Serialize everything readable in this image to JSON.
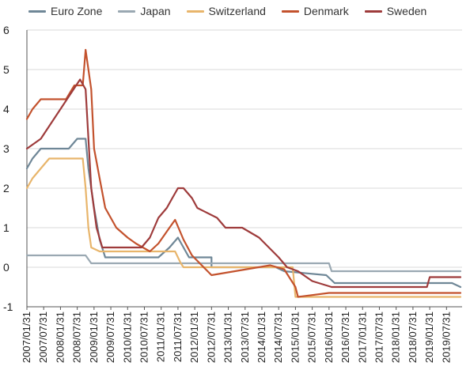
{
  "chart_data": {
    "type": "line",
    "title": "",
    "xlabel": "",
    "ylabel": "",
    "ylim": [
      -1,
      6
    ],
    "yticks": [
      "-1",
      "0",
      "1",
      "2",
      "3",
      "4",
      "5",
      "6"
    ],
    "grid": "horizontal",
    "legend_position": "top",
    "x_tick_labels": [
      "2007/01/31",
      "2007/07/31",
      "2008/01/31",
      "2008/07/31",
      "2009/01/31",
      "2009/07/31",
      "2010/01/31",
      "2010/07/31",
      "2011/01/31",
      "2011/07/31",
      "2012/01/31",
      "2012/07/31",
      "2013/01/31",
      "2013/07/31",
      "2014/01/31",
      "2014/07/31",
      "2015/01/31",
      "2015/07/31",
      "2016/01/31",
      "2016/07/31",
      "2017/01/31",
      "2017/07/31",
      "2018/01/31",
      "2018/07/31",
      "2019/01/31",
      "2019/07/31"
    ],
    "series": [
      {
        "name": "Euro Zone",
        "color": "#6f8797",
        "points": [
          [
            "2007/01/31",
            2.5
          ],
          [
            "2007/03/31",
            2.75
          ],
          [
            "2007/06/30",
            3.0
          ],
          [
            "2008/04/30",
            3.0
          ],
          [
            "2008/07/31",
            3.25
          ],
          [
            "2008/10/31",
            3.25
          ],
          [
            "2008/11/30",
            2.5
          ],
          [
            "2008/12/31",
            2.0
          ],
          [
            "2009/01/31",
            1.5
          ],
          [
            "2009/03/31",
            0.7
          ],
          [
            "2009/05/31",
            0.25
          ],
          [
            "2010/12/31",
            0.25
          ],
          [
            "2011/04/30",
            0.5
          ],
          [
            "2011/07/31",
            0.75
          ],
          [
            "2011/11/30",
            0.25
          ],
          [
            "2012/07/31",
            0.25
          ],
          [
            "2012/07/31",
            0.0
          ],
          [
            "2014/06/30",
            0.0
          ],
          [
            "2014/09/30",
            -0.1
          ],
          [
            "2015/12/31",
            -0.2
          ],
          [
            "2016/03/31",
            -0.4
          ],
          [
            "2019/09/30",
            -0.4
          ],
          [
            "2019/12/31",
            -0.5
          ]
        ]
      },
      {
        "name": "Japan",
        "color": "#9aa8b2",
        "points": [
          [
            "2007/01/31",
            0.3
          ],
          [
            "2008/10/31",
            0.3
          ],
          [
            "2008/12/31",
            0.1
          ],
          [
            "2016/01/31",
            0.1
          ],
          [
            "2016/02/29",
            -0.1
          ],
          [
            "2019/12/31",
            -0.1
          ]
        ]
      },
      {
        "name": "Switzerland",
        "color": "#e8b56b",
        "points": [
          [
            "2007/01/31",
            2.0
          ],
          [
            "2007/03/31",
            2.25
          ],
          [
            "2007/06/30",
            2.5
          ],
          [
            "2007/09/30",
            2.75
          ],
          [
            "2008/09/30",
            2.75
          ],
          [
            "2008/10/31",
            2.0
          ],
          [
            "2008/11/30",
            1.0
          ],
          [
            "2008/12/31",
            0.5
          ],
          [
            "2009/03/31",
            0.4
          ],
          [
            "2011/06/30",
            0.4
          ],
          [
            "2011/08/31",
            0.1
          ],
          [
            "2011/09/30",
            0.0
          ],
          [
            "2014/12/31",
            0.0
          ],
          [
            "2015/01/31",
            -0.75
          ],
          [
            "2019/12/31",
            -0.75
          ]
        ]
      },
      {
        "name": "Denmark",
        "color": "#c3522d",
        "points": [
          [
            "2007/01/31",
            3.75
          ],
          [
            "2007/03/31",
            4.0
          ],
          [
            "2007/06/30",
            4.25
          ],
          [
            "2008/03/31",
            4.25
          ],
          [
            "2008/06/30",
            4.6
          ],
          [
            "2008/09/30",
            4.6
          ],
          [
            "2008/10/31",
            5.5
          ],
          [
            "2008/12/31",
            4.5
          ],
          [
            "2009/01/31",
            3.0
          ],
          [
            "2009/03/31",
            2.25
          ],
          [
            "2009/05/31",
            1.5
          ],
          [
            "2009/09/30",
            1.0
          ],
          [
            "2010/01/31",
            0.75
          ],
          [
            "2010/04/30",
            0.6
          ],
          [
            "2010/09/30",
            0.4
          ],
          [
            "2010/12/31",
            0.6
          ],
          [
            "2011/04/30",
            1.0
          ],
          [
            "2011/06/30",
            1.2
          ],
          [
            "2011/09/30",
            0.7
          ],
          [
            "2011/12/31",
            0.3
          ],
          [
            "2012/07/31",
            -0.2
          ],
          [
            "2014/04/30",
            0.05
          ],
          [
            "2014/09/30",
            -0.05
          ],
          [
            "2015/01/31",
            -0.5
          ],
          [
            "2015/02/28",
            -0.75
          ],
          [
            "2016/01/31",
            -0.65
          ],
          [
            "2019/12/31",
            -0.65
          ]
        ]
      },
      {
        "name": "Sweden",
        "color": "#9e3b3b",
        "points": [
          [
            "2007/01/31",
            3.0
          ],
          [
            "2007/06/30",
            3.25
          ],
          [
            "2008/08/31",
            4.75
          ],
          [
            "2008/10/31",
            4.5
          ],
          [
            "2008/12/31",
            2.0
          ],
          [
            "2009/02/28",
            1.0
          ],
          [
            "2009/04/30",
            0.5
          ],
          [
            "2010/06/30",
            0.5
          ],
          [
            "2010/09/30",
            0.75
          ],
          [
            "2010/12/31",
            1.25
          ],
          [
            "2011/03/31",
            1.5
          ],
          [
            "2011/05/31",
            1.75
          ],
          [
            "2011/07/31",
            2.0
          ],
          [
            "2011/09/30",
            2.0
          ],
          [
            "2011/12/31",
            1.75
          ],
          [
            "2012/02/29",
            1.5
          ],
          [
            "2012/09/30",
            1.25
          ],
          [
            "2012/12/31",
            1.0
          ],
          [
            "2013/06/30",
            1.0
          ],
          [
            "2013/12/31",
            0.75
          ],
          [
            "2014/07/31",
            0.25
          ],
          [
            "2014/10/31",
            0.0
          ],
          [
            "2015/02/28",
            -0.1
          ],
          [
            "2015/07/31",
            -0.35
          ],
          [
            "2016/02/29",
            -0.5
          ],
          [
            "2018/12/31",
            -0.5
          ],
          [
            "2019/01/31",
            -0.25
          ],
          [
            "2019/12/31",
            -0.25
          ]
        ]
      }
    ]
  }
}
